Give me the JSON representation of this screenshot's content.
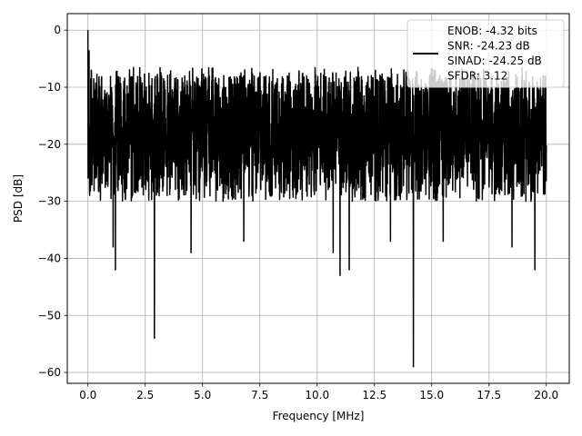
{
  "chart_data": {
    "type": "line",
    "title": "",
    "xlabel": "Frequency [MHz]",
    "ylabel": "PSD [dB]",
    "xlim": [
      -0.9,
      21.0
    ],
    "ylim": [
      -61.9,
      2.9
    ],
    "x_ticks": [
      0.0,
      2.5,
      5.0,
      7.5,
      10.0,
      12.5,
      15.0,
      17.5,
      20.0
    ],
    "x_tick_labels": [
      "0.0",
      "2.5",
      "5.0",
      "7.5",
      "10.0",
      "12.5",
      "15.0",
      "17.5",
      "20.0"
    ],
    "y_ticks": [
      0,
      -10,
      -20,
      -30,
      -40,
      -50,
      -60
    ],
    "y_tick_labels": [
      "0",
      "−10",
      "−20",
      "−30",
      "−40",
      "−50",
      "−60"
    ],
    "grid": true,
    "legend_placement": "top-right",
    "series": [
      {
        "name": "ENOB: -4.32 bits\nSNR: -24.23 dB\nSINAD: -24.25 dB\nSFDR: 3.12",
        "legend_lines": [
          "ENOB: -4.32 bits",
          "SNR: -24.23 dB",
          "SINAD: -24.25 dB",
          "SFDR: 3.12"
        ],
        "color": "#000000",
        "x_range": [
          0.0,
          20.0
        ],
        "noise_floor_band": [
          -30.0,
          -8.0
        ],
        "peaks": [
          {
            "x": 0.0,
            "y": 0.0
          },
          {
            "x": 0.05,
            "y": -3.6
          },
          {
            "x": 0.1,
            "y": -17.0
          },
          {
            "x": 0.3,
            "y": -10.5
          }
        ],
        "dips": [
          {
            "x": 1.2,
            "y": -42.0
          },
          {
            "x": 1.1,
            "y": -38.0
          },
          {
            "x": 2.9,
            "y": -54.0
          },
          {
            "x": 4.5,
            "y": -39.0
          },
          {
            "x": 6.8,
            "y": -37.0
          },
          {
            "x": 10.7,
            "y": -39.0
          },
          {
            "x": 11.0,
            "y": -43.0
          },
          {
            "x": 11.4,
            "y": -42.0
          },
          {
            "x": 13.2,
            "y": -37.0
          },
          {
            "x": 14.2,
            "y": -59.0
          },
          {
            "x": 15.5,
            "y": -37.0
          },
          {
            "x": 18.5,
            "y": -38.0
          },
          {
            "x": 19.5,
            "y": -42.0
          }
        ]
      }
    ]
  }
}
